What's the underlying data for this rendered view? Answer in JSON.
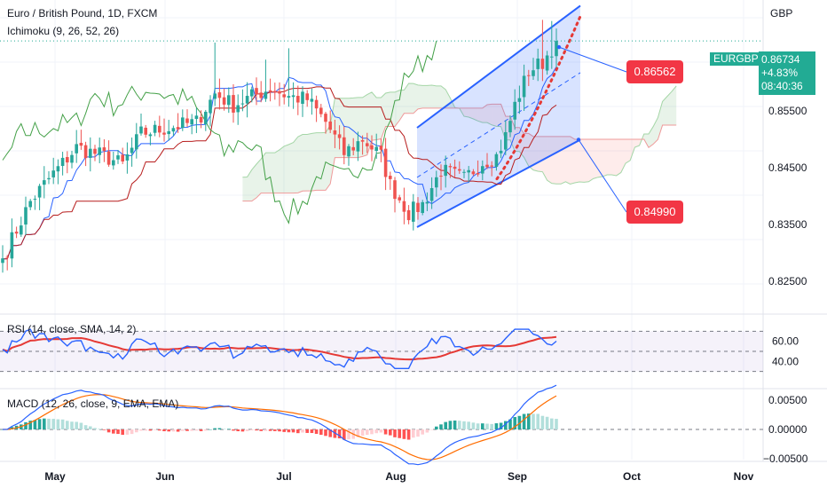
{
  "header": {
    "title": "Euro / British Pound, 1D, FXCM",
    "indicator": "Ichimoku (9, 26, 52, 26)"
  },
  "currency": "GBP",
  "symbol_tag": {
    "symbol": "EURGBP",
    "price": "0.86734",
    "change": "+4.83%",
    "countdown": "08:40:36",
    "color": "#22ab94"
  },
  "annotations": [
    {
      "label": "0.86562",
      "color": "#f23645"
    },
    {
      "label": "0.84990",
      "color": "#f23645"
    }
  ],
  "rsi": {
    "label": "RSI (14, close, SMA, 14, 2)",
    "ticks": [
      "60.00",
      "40.00"
    ]
  },
  "macd": {
    "label": "MACD (12, 26, close, 9, EMA, EMA)",
    "ticks": [
      "0.00500",
      "0.00000",
      "−0.00500"
    ]
  },
  "chart_data": {
    "type": "candlestick",
    "price_axis": {
      "ticks": [
        "0.85500",
        "0.84500",
        "0.83500",
        "0.82500"
      ],
      "ylim": [
        0.8195,
        0.8745
      ]
    },
    "x_axis": {
      "labels": [
        "May",
        "Jun",
        "Jul",
        "Aug",
        "Sep",
        "Oct",
        "Nov"
      ]
    },
    "close_start": 0.829,
    "close_end": 0.8673,
    "channel": {
      "upper_start": 0.852,
      "upper_end": 0.8735,
      "lower_start": 0.8345,
      "lower_end": 0.8499
    },
    "colors": {
      "up": "#26a69a",
      "down": "#ef5350",
      "conversion": "#2962ff",
      "base": "#b71c1c",
      "lagging": "#43a047",
      "channel": "#2962ff",
      "rsi_line": "#2962ff",
      "rsi_ma": "#e53935",
      "macd_line": "#2962ff",
      "signal_line": "#ff6d00"
    }
  }
}
